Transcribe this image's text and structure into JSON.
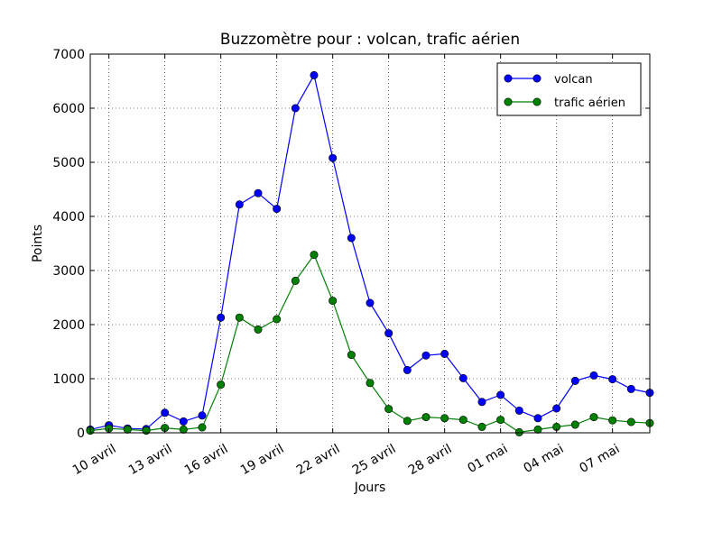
{
  "chart_data": {
    "type": "line",
    "title": "Buzzomètre pour : volcan, trafic aérien",
    "xlabel": "Jours",
    "ylabel": "Points",
    "xlim": [
      "2010-04-09",
      "2010-05-09"
    ],
    "ylim": [
      0,
      7000
    ],
    "y_ticks": [
      0,
      1000,
      2000,
      3000,
      4000,
      5000,
      6000,
      7000
    ],
    "x_ticks": [
      {
        "date": "2010-04-10",
        "label": "10 avril"
      },
      {
        "date": "2010-04-13",
        "label": "13 avril"
      },
      {
        "date": "2010-04-16",
        "label": "16 avril"
      },
      {
        "date": "2010-04-19",
        "label": "19 avril"
      },
      {
        "date": "2010-04-22",
        "label": "22 avril"
      },
      {
        "date": "2010-04-25",
        "label": "25 avril"
      },
      {
        "date": "2010-04-28",
        "label": "28 avril"
      },
      {
        "date": "2010-05-01",
        "label": "01 mai"
      },
      {
        "date": "2010-05-04",
        "label": "04 mai"
      },
      {
        "date": "2010-05-07",
        "label": "07 mai"
      }
    ],
    "grid": true,
    "legend_position": "top-right",
    "x": [
      "2010-04-09",
      "2010-04-10",
      "2010-04-11",
      "2010-04-12",
      "2010-04-13",
      "2010-04-14",
      "2010-04-15",
      "2010-04-16",
      "2010-04-17",
      "2010-04-18",
      "2010-04-19",
      "2010-04-20",
      "2010-04-21",
      "2010-04-22",
      "2010-04-23",
      "2010-04-24",
      "2010-04-25",
      "2010-04-26",
      "2010-04-27",
      "2010-04-28",
      "2010-04-29",
      "2010-04-30",
      "2010-05-01",
      "2010-05-02",
      "2010-05-03",
      "2010-05-04",
      "2010-05-05",
      "2010-05-06",
      "2010-05-07",
      "2010-05-08",
      "2010-05-09"
    ],
    "series": [
      {
        "name": "volcan",
        "color": "#0000ff",
        "values": [
          60,
          140,
          80,
          70,
          370,
          210,
          320,
          2130,
          4220,
          4430,
          4140,
          6000,
          6610,
          5080,
          3600,
          2400,
          1840,
          1160,
          1430,
          1460,
          1010,
          570,
          700,
          410,
          270,
          450,
          960,
          1060,
          990,
          810,
          740
        ]
      },
      {
        "name": " trafic aérien",
        "color": "#008000",
        "values": [
          40,
          80,
          60,
          40,
          90,
          60,
          100,
          890,
          2130,
          1910,
          2100,
          2810,
          3290,
          2440,
          1440,
          920,
          440,
          220,
          290,
          270,
          240,
          110,
          240,
          10,
          60,
          110,
          150,
          290,
          230,
          200,
          180
        ]
      }
    ]
  }
}
